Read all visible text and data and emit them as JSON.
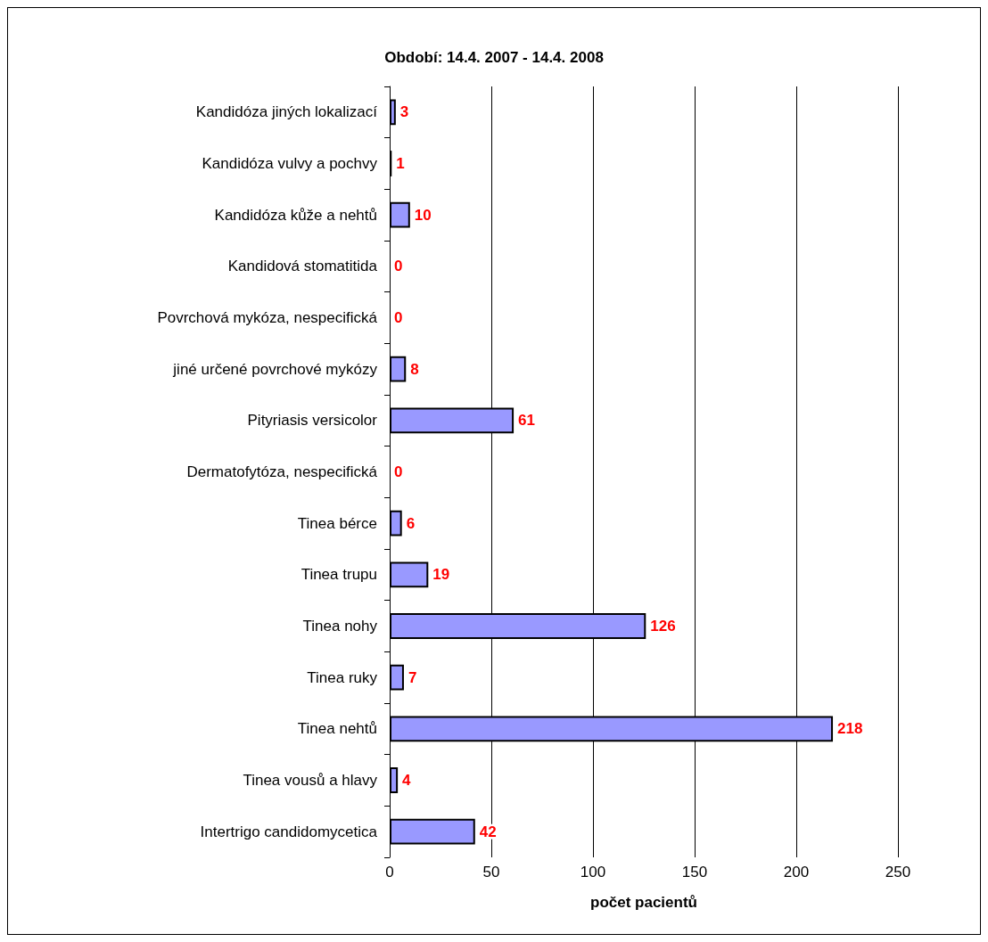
{
  "chart_data": {
    "type": "bar",
    "orientation": "horizontal",
    "title": "Období: 14.4. 2007 - 14.4. 2008",
    "xlabel": "počet pacientů",
    "categories": [
      "Kandidóza jiných lokalizací",
      "Kandidóza vulvy a pochvy",
      "Kandidóza kůže a nehtů",
      "Kandidová stomatitida",
      "Povrchová mykóza, nespecifická",
      "jiné určené povrchové mykózy",
      "Pityriasis versicolor",
      "Dermatofytóza, nespecifická",
      "Tinea bérce",
      "Tinea trupu",
      "Tinea nohy",
      "Tinea ruky",
      "Tinea nehtů",
      "Tinea vousů a hlavy",
      "Intertrigo candidomycetica"
    ],
    "values": [
      3,
      1,
      10,
      0,
      0,
      8,
      61,
      0,
      6,
      19,
      126,
      7,
      218,
      4,
      42
    ],
    "color": "#9999ff",
    "xlim": [
      0,
      250
    ],
    "xticks": [
      0,
      50,
      100,
      150,
      200,
      250
    ],
    "grid": "x",
    "data_labels": true
  }
}
